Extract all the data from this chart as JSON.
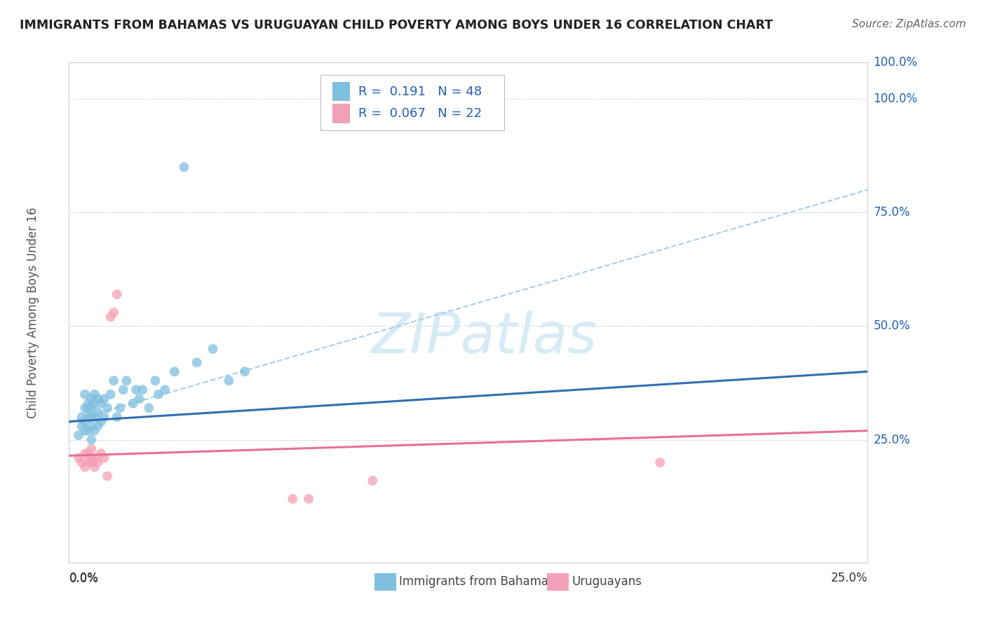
{
  "title": "IMMIGRANTS FROM BAHAMAS VS URUGUAYAN CHILD POVERTY AMONG BOYS UNDER 16 CORRELATION CHART",
  "source": "Source: ZipAtlas.com",
  "ylabel": "Child Poverty Among Boys Under 16",
  "y_tick_labels": [
    "100.0%",
    "75.0%",
    "50.0%",
    "25.0%"
  ],
  "y_tick_values": [
    1.0,
    0.75,
    0.5,
    0.25
  ],
  "xlim": [
    0.0,
    0.25
  ],
  "ylim": [
    -0.02,
    1.08
  ],
  "legend_label1": "Immigrants from Bahamas",
  "legend_label2": "Uruguayans",
  "blue_color": "#7fbfdf",
  "pink_color": "#f4a0b8",
  "blue_line_color": "#3070b0",
  "pink_line_color": "#e87090",
  "dashed_line_color": "#aacce8",
  "watermark_color": "#d0e8f5",
  "background_color": "#ffffff",
  "grid_color": "#cccccc",
  "blue_scatter_x": [
    0.003,
    0.004,
    0.004,
    0.005,
    0.005,
    0.005,
    0.005,
    0.006,
    0.006,
    0.006,
    0.006,
    0.007,
    0.007,
    0.007,
    0.007,
    0.007,
    0.008,
    0.008,
    0.008,
    0.008,
    0.009,
    0.009,
    0.009,
    0.01,
    0.01,
    0.011,
    0.011,
    0.012,
    0.013,
    0.014,
    0.015,
    0.016,
    0.017,
    0.018,
    0.02,
    0.021,
    0.022,
    0.023,
    0.025,
    0.027,
    0.028,
    0.03,
    0.033,
    0.036,
    0.04,
    0.045,
    0.05,
    0.055
  ],
  "blue_scatter_y": [
    0.26,
    0.28,
    0.3,
    0.27,
    0.29,
    0.32,
    0.35,
    0.27,
    0.3,
    0.32,
    0.33,
    0.25,
    0.28,
    0.3,
    0.32,
    0.34,
    0.27,
    0.3,
    0.33,
    0.35,
    0.28,
    0.31,
    0.34,
    0.29,
    0.33,
    0.3,
    0.34,
    0.32,
    0.35,
    0.38,
    0.3,
    0.32,
    0.36,
    0.38,
    0.33,
    0.36,
    0.34,
    0.36,
    0.32,
    0.38,
    0.35,
    0.36,
    0.4,
    0.85,
    0.42,
    0.45,
    0.38,
    0.4
  ],
  "pink_scatter_x": [
    0.003,
    0.004,
    0.005,
    0.005,
    0.006,
    0.006,
    0.007,
    0.007,
    0.007,
    0.008,
    0.008,
    0.009,
    0.01,
    0.011,
    0.012,
    0.013,
    0.014,
    0.015,
    0.07,
    0.075,
    0.095,
    0.185
  ],
  "pink_scatter_y": [
    0.21,
    0.2,
    0.19,
    0.22,
    0.2,
    0.22,
    0.2,
    0.21,
    0.23,
    0.19,
    0.21,
    0.2,
    0.22,
    0.21,
    0.17,
    0.52,
    0.53,
    0.57,
    0.12,
    0.12,
    0.16,
    0.2
  ],
  "blue_line_x0": 0.0,
  "blue_line_x1": 0.25,
  "blue_line_y0": 0.29,
  "blue_line_y1": 0.4,
  "pink_line_x0": 0.0,
  "pink_line_x1": 0.25,
  "pink_line_y0": 0.215,
  "pink_line_y1": 0.27,
  "dash_line_x0": 0.0,
  "dash_line_x1": 0.25,
  "dash_line_y0": 0.29,
  "dash_line_y1": 0.8
}
